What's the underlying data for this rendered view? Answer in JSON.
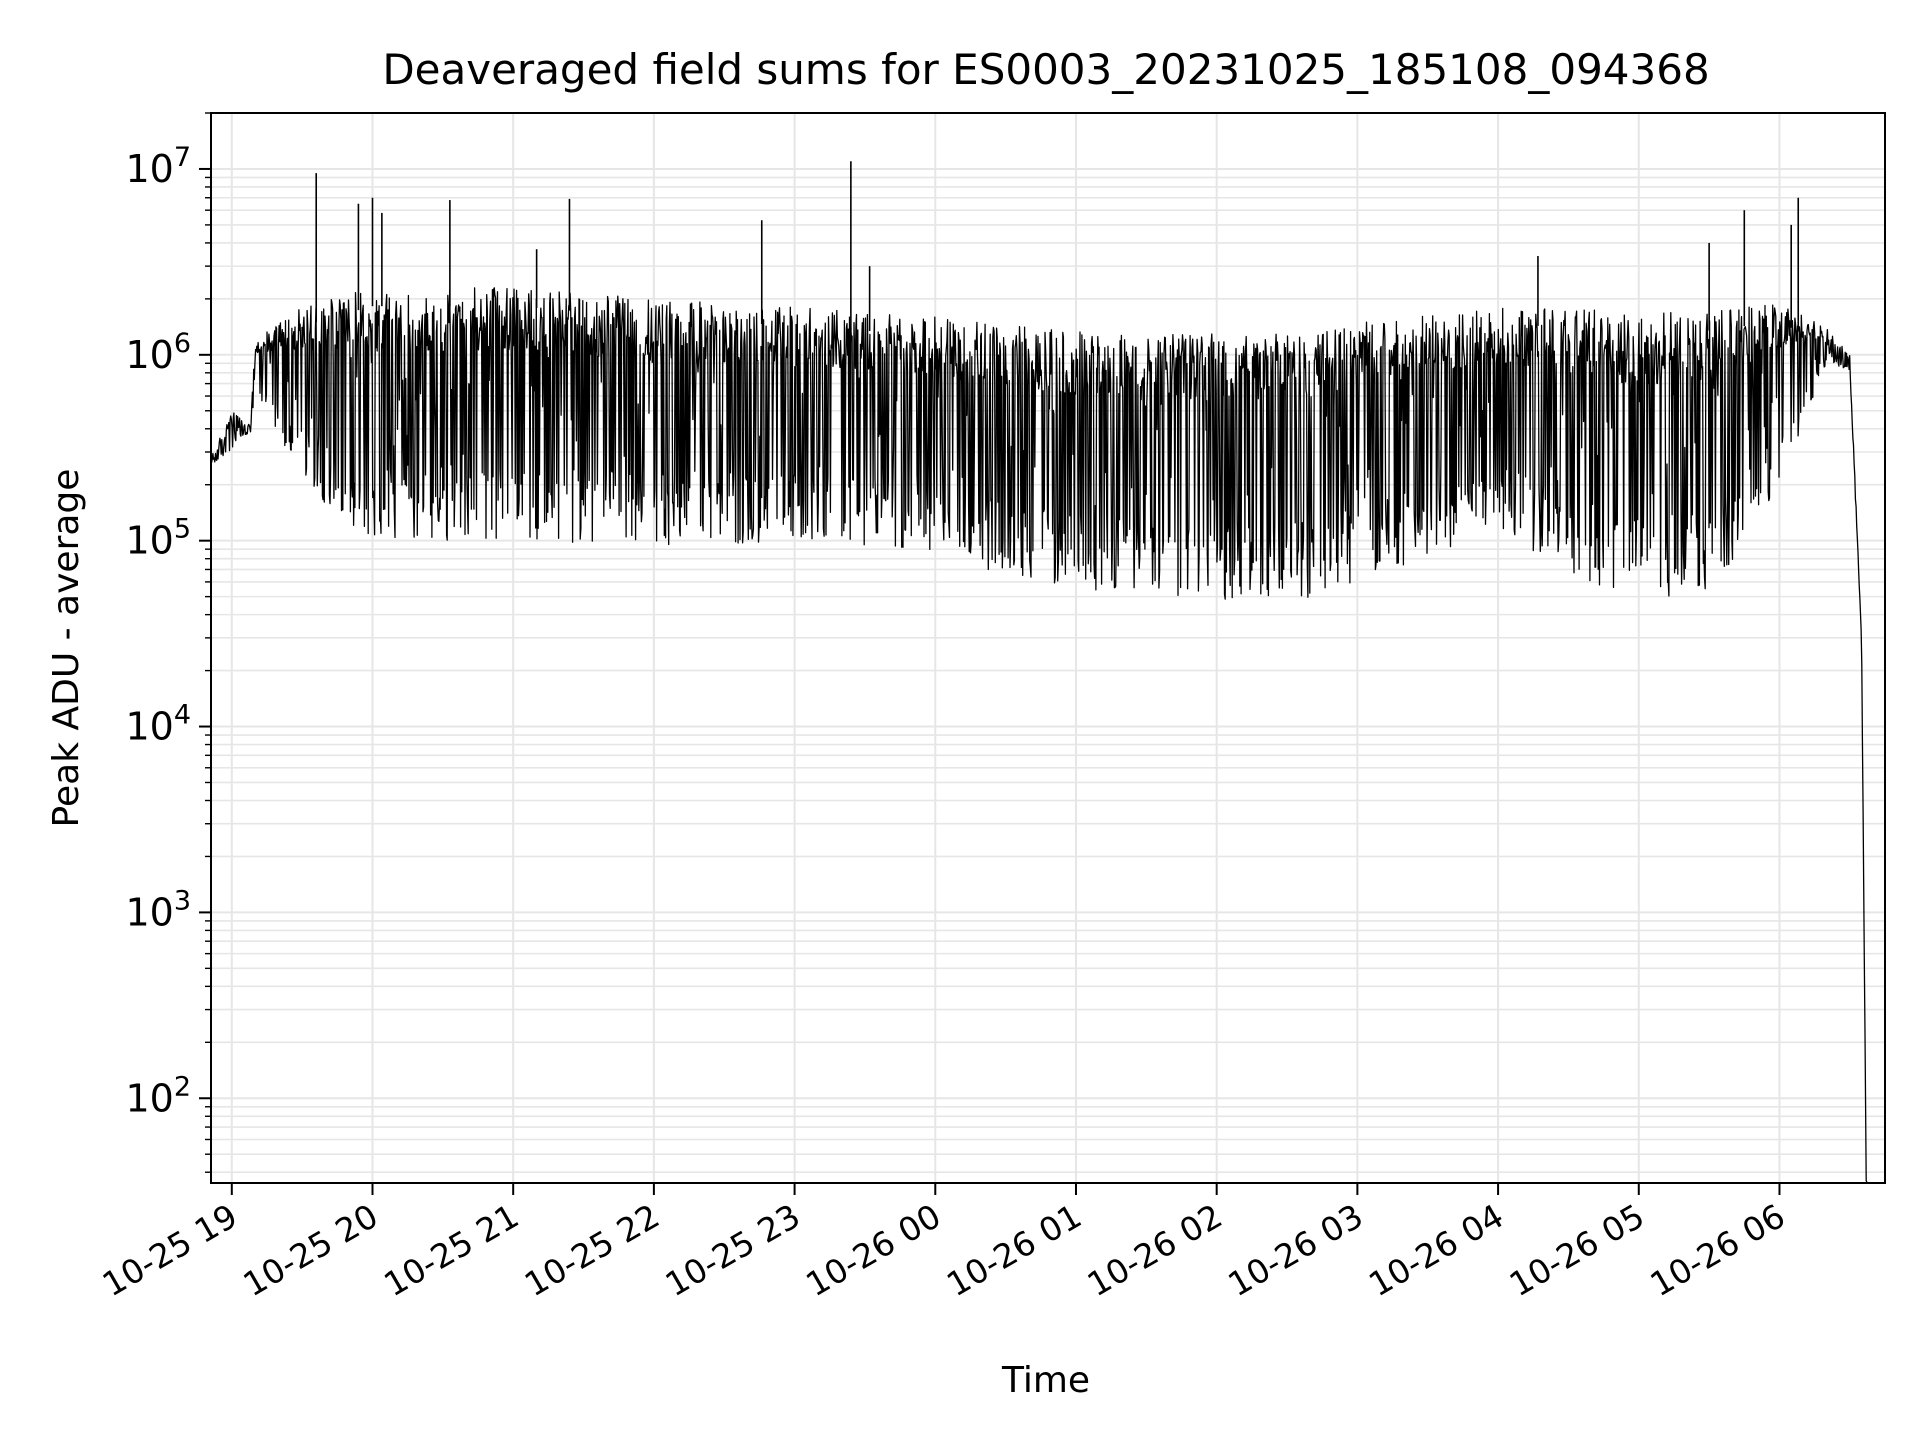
{
  "chart_data": {
    "type": "line",
    "title": "Deaveraged field sums for ES0003_20231025_185108_094368",
    "xlabel": "Time",
    "ylabel": "Peak ADU - average",
    "yscale": "log",
    "ylim": [
      35,
      20000000
    ],
    "xlim": [
      "2023-10-25T18:51:08",
      "2023-10-26T06:45:00"
    ],
    "grid": true,
    "line_color": "#000000",
    "grid_color": "#e6e6e6",
    "x_ticks": [
      {
        "label": "10-25 19",
        "time": "2023-10-25T19:00:00"
      },
      {
        "label": "10-25 20",
        "time": "2023-10-25T20:00:00"
      },
      {
        "label": "10-25 21",
        "time": "2023-10-25T21:00:00"
      },
      {
        "label": "10-25 22",
        "time": "2023-10-25T22:00:00"
      },
      {
        "label": "10-25 23",
        "time": "2023-10-25T23:00:00"
      },
      {
        "label": "10-26 00",
        "time": "2023-10-26T00:00:00"
      },
      {
        "label": "10-26 01",
        "time": "2023-10-26T01:00:00"
      },
      {
        "label": "10-26 02",
        "time": "2023-10-26T02:00:00"
      },
      {
        "label": "10-26 03",
        "time": "2023-10-26T03:00:00"
      },
      {
        "label": "10-26 04",
        "time": "2023-10-26T04:00:00"
      },
      {
        "label": "10-26 05",
        "time": "2023-10-26T05:00:00"
      },
      {
        "label": "10-26 06",
        "time": "2023-10-26T06:00:00"
      }
    ],
    "y_ticks": [
      {
        "value": 100,
        "base": "10",
        "exp": "2"
      },
      {
        "value": 1000,
        "base": "10",
        "exp": "3"
      },
      {
        "value": 10000,
        "base": "10",
        "exp": "4"
      },
      {
        "value": 100000,
        "base": "10",
        "exp": "5"
      },
      {
        "value": 1000000,
        "base": "10",
        "exp": "6"
      },
      {
        "value": 10000000,
        "base": "10",
        "exp": "7"
      }
    ],
    "envelope": {
      "description_note": "Upper and lower envelope of the dense oscillating signal, sampled in time",
      "samples": [
        {
          "time": "2023-10-25T18:51:08",
          "hi": 280000,
          "lo": 250000
        },
        {
          "time": "2023-10-25T19:00:00",
          "hi": 500000,
          "lo": 300000
        },
        {
          "time": "2023-10-25T19:08:00",
          "hi": 420000,
          "lo": 380000
        },
        {
          "time": "2023-10-25T19:10:00",
          "hi": 1200000,
          "lo": 600000
        },
        {
          "time": "2023-10-25T19:30:00",
          "hi": 1800000,
          "lo": 200000
        },
        {
          "time": "2023-10-25T20:00:00",
          "hi": 2300000,
          "lo": 100000
        },
        {
          "time": "2023-10-25T21:00:00",
          "hi": 2300000,
          "lo": 100000
        },
        {
          "time": "2023-10-25T22:00:00",
          "hi": 2000000,
          "lo": 95000
        },
        {
          "time": "2023-10-25T23:00:00",
          "hi": 1800000,
          "lo": 95000
        },
        {
          "time": "2023-10-26T00:00:00",
          "hi": 1600000,
          "lo": 85000
        },
        {
          "time": "2023-10-26T00:30:00",
          "hi": 1450000,
          "lo": 65000
        },
        {
          "time": "2023-10-26T01:00:00",
          "hi": 1350000,
          "lo": 55000
        },
        {
          "time": "2023-10-26T02:00:00",
          "hi": 1300000,
          "lo": 48000
        },
        {
          "time": "2023-10-26T02:40:00",
          "hi": 1300000,
          "lo": 48000
        },
        {
          "time": "2023-10-26T03:00:00",
          "hi": 1500000,
          "lo": 60000
        },
        {
          "time": "2023-10-26T04:00:00",
          "hi": 1800000,
          "lo": 110000
        },
        {
          "time": "2023-10-26T04:20:00",
          "hi": 1800000,
          "lo": 80000
        },
        {
          "time": "2023-10-26T05:00:00",
          "hi": 1700000,
          "lo": 45000
        },
        {
          "time": "2023-10-26T05:30:00",
          "hi": 1700000,
          "lo": 50000
        },
        {
          "time": "2023-10-26T06:00:00",
          "hi": 1900000,
          "lo": 200000
        },
        {
          "time": "2023-10-26T06:20:00",
          "hi": 1400000,
          "lo": 900000
        },
        {
          "time": "2023-10-26T06:30:00",
          "hi": 1000000,
          "lo": 800000
        },
        {
          "time": "2023-10-26T06:35:00",
          "hi": 30000,
          "lo": 30000
        },
        {
          "time": "2023-10-26T06:37:00",
          "hi": 36,
          "lo": 36
        }
      ]
    },
    "spikes": [
      {
        "time": "2023-10-25T19:36:00",
        "value": 9500000
      },
      {
        "time": "2023-10-25T19:54:00",
        "value": 6500000
      },
      {
        "time": "2023-10-25T20:00:00",
        "value": 7000000
      },
      {
        "time": "2023-10-25T20:04:00",
        "value": 5800000
      },
      {
        "time": "2023-10-25T20:33:00",
        "value": 6800000
      },
      {
        "time": "2023-10-25T21:10:00",
        "value": 3700000
      },
      {
        "time": "2023-10-25T21:24:00",
        "value": 6900000
      },
      {
        "time": "2023-10-25T22:46:00",
        "value": 5300000
      },
      {
        "time": "2023-10-25T23:24:00",
        "value": 11000000
      },
      {
        "time": "2023-10-25T23:32:00",
        "value": 3000000
      },
      {
        "time": "2023-10-26T04:17:00",
        "value": 3400000
      },
      {
        "time": "2023-10-26T05:30:00",
        "value": 4000000
      },
      {
        "time": "2023-10-26T05:45:00",
        "value": 6000000
      },
      {
        "time": "2023-10-26T06:05:00",
        "value": 5000000
      },
      {
        "time": "2023-10-26T06:08:00",
        "value": 7000000
      }
    ]
  }
}
